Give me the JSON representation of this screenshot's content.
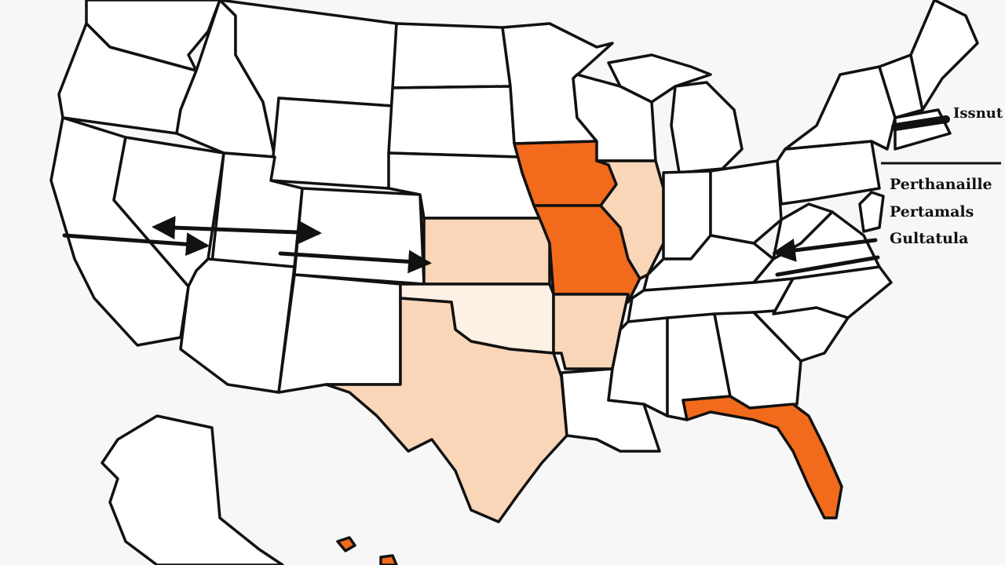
{
  "map": {
    "colors": {
      "high": "#f26a1b",
      "medium": "#f9d6b8",
      "low": "#fdf0e4",
      "default": "#ffffff",
      "background": "#f7f7f7"
    },
    "highlighted_regions": [
      {
        "region": "iowa",
        "level": "high"
      },
      {
        "region": "missouri",
        "level": "high"
      },
      {
        "region": "florida",
        "level": "high"
      },
      {
        "region": "illinois",
        "level": "medium"
      },
      {
        "region": "kansas",
        "level": "medium"
      },
      {
        "region": "texas",
        "level": "medium"
      },
      {
        "region": "arkansas",
        "level": "medium"
      },
      {
        "region": "oklahoma",
        "level": "low"
      },
      {
        "region": "hawaii",
        "level": "high"
      }
    ]
  },
  "labels": {
    "top": "Issnut",
    "legend": [
      "Perthanaille",
      "Pertamals",
      "Gultatula"
    ]
  }
}
